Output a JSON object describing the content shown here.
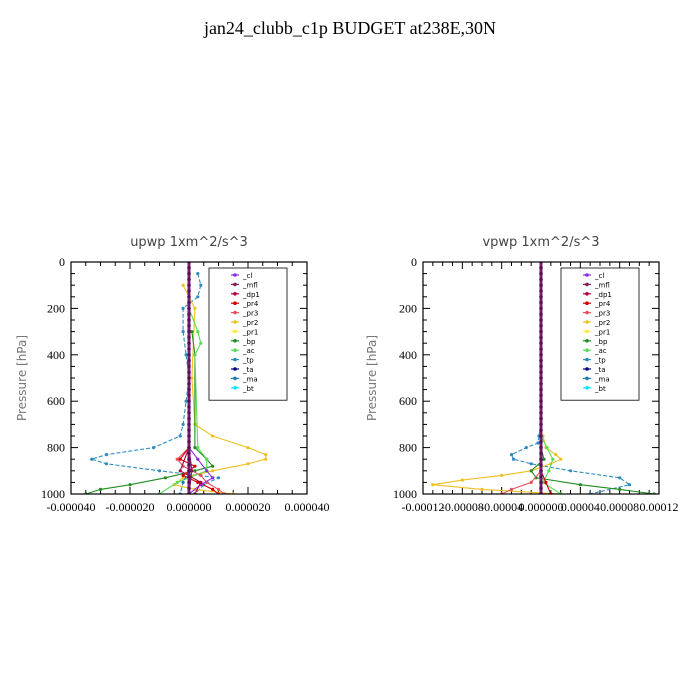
{
  "page": {
    "title": "jan24_clubb_c1p  BUDGET at238E,30N"
  },
  "legend_entries": [
    "_cl",
    "_mfl",
    "_dp1",
    "_pr4",
    "_pr3",
    "_pr2",
    "_pr1",
    "_bp",
    "_ac",
    "_tp",
    "_ta",
    "_ma",
    "_bt"
  ],
  "colors": {
    "_cl": "#8a2be2",
    "_mfl": "#8b1a5a",
    "_dp1": "#b0003a",
    "_pr4": "#d00000",
    "_pr3": "#e8505a",
    "_pr2": "#f0c020",
    "_pr1": "#ffea40",
    "_bp": "#228b22",
    "_ac": "#55dd55",
    "_tp": "#2e8bc0",
    "_ta": "#00008b",
    "_ma": "#1f77b4",
    "_bt": "#00e5ff"
  },
  "chart_data": [
    {
      "type": "line",
      "title": "upwp   1xm^2/s^3",
      "ylabel": "Pressure [hPa]",
      "ylim": [
        1000,
        0
      ],
      "xlim": [
        -4e-05,
        4e-05
      ],
      "xticks": [
        "-0.000040",
        "-0.000020",
        "0.000000",
        "0.000020",
        "0.000040"
      ],
      "yticks": [
        "0",
        "200",
        "400",
        "600",
        "800",
        "1000"
      ],
      "series": [
        {
          "name": "_tp",
          "y": [
            50,
            100,
            150,
            200,
            300,
            400,
            500,
            600,
            700,
            750,
            800,
            830,
            850,
            870,
            900,
            930,
            960,
            1000
          ],
          "x": [
            3e-06,
            4e-06,
            3e-06,
            -2e-06,
            -2e-06,
            -1e-06,
            0,
            -1e-06,
            -2e-06,
            -3e-06,
            -1.2e-05,
            -2.8e-05,
            -3.3e-05,
            -2.8e-05,
            -1e-05,
            1e-05,
            5e-06,
            2e-06
          ]
        },
        {
          "name": "_pr2",
          "y": [
            100,
            200,
            500,
            700,
            750,
            800,
            830,
            850,
            870,
            900,
            930,
            960,
            980,
            1000
          ],
          "x": [
            -2e-06,
            2e-06,
            1e-06,
            2e-06,
            8e-06,
            2e-05,
            2.6e-05,
            2.6e-05,
            2e-05,
            8e-06,
            -2e-06,
            -5e-06,
            2e-06,
            1.5e-05
          ]
        },
        {
          "name": "_bp",
          "y": [
            300,
            400,
            800,
            850,
            880,
            900,
            930,
            960,
            980,
            1000
          ],
          "x": [
            1e-06,
            2e-06,
            2e-06,
            6e-06,
            8e-06,
            2e-06,
            -8e-06,
            -2e-05,
            -3e-05,
            -3.5e-05
          ]
        },
        {
          "name": "_ac",
          "y": [
            200,
            300,
            350,
            400,
            800,
            850,
            900,
            950,
            1000
          ],
          "x": [
            0,
            3e-06,
            4e-06,
            2e-06,
            3e-06,
            6e-06,
            6e-06,
            -4e-06,
            -1e-05
          ]
        },
        {
          "name": "_pr3",
          "y": [
            800,
            850,
            880,
            920,
            950,
            980,
            1000
          ],
          "x": [
            0,
            -4e-06,
            -2e-06,
            4e-06,
            6e-06,
            1e-05,
            1.2e-05
          ]
        },
        {
          "name": "_pr4",
          "y": [
            800,
            850,
            880,
            920,
            950,
            980,
            1000
          ],
          "x": [
            0,
            -3e-06,
            2e-06,
            -2e-06,
            3e-06,
            8e-06,
            1e-05
          ]
        },
        {
          "name": "_cl",
          "y": [
            800,
            850,
            900,
            930,
            960,
            1000
          ],
          "x": [
            0,
            3e-06,
            6e-06,
            8e-06,
            4e-06,
            0
          ]
        },
        {
          "name": "_mfl",
          "y": [
            0,
            500,
            800,
            900,
            1000
          ],
          "x": [
            0,
            0,
            0,
            1e-06,
            0
          ]
        },
        {
          "name": "_dp1",
          "y": [
            800,
            900,
            950,
            1000
          ],
          "x": [
            0,
            -3e-06,
            4e-06,
            2e-06
          ]
        },
        {
          "name": "_ma",
          "y": [
            900,
            950,
            1000
          ],
          "x": [
            0,
            -2e-06,
            -3e-06
          ]
        }
      ]
    },
    {
      "type": "line",
      "title": "vpwp   1xm^2/s^3",
      "ylabel": "Pressure [hPa]",
      "ylim": [
        1000,
        0
      ],
      "xlim": [
        -0.00012,
        0.00012
      ],
      "xticks": [
        "-0.00012",
        "-0.00008",
        "-0.00004",
        "0.000000",
        "0.00004",
        "0.00008",
        "0.00012"
      ],
      "yticks": [
        "0",
        "200",
        "400",
        "600",
        "800",
        "1000"
      ],
      "series": [
        {
          "name": "_tp",
          "y": [
            700,
            750,
            780,
            800,
            830,
            850,
            870,
            900,
            930,
            960,
            1000
          ],
          "x": [
            0,
            -2e-06,
            -3e-06,
            -1.5e-05,
            -3e-05,
            -2.8e-05,
            -1e-05,
            3e-05,
            8e-05,
            9e-05,
            5e-05
          ]
        },
        {
          "name": "_pr2",
          "y": [
            750,
            800,
            830,
            850,
            870,
            900,
            920,
            940,
            960,
            980,
            1000
          ],
          "x": [
            2e-06,
            5e-06,
            1.5e-05,
            2e-05,
            1e-05,
            -1e-05,
            -4e-05,
            -8e-05,
            -0.00011,
            -6e-05,
            2e-05
          ]
        },
        {
          "name": "_bp",
          "y": [
            800,
            850,
            900,
            930,
            960,
            980,
            1000
          ],
          "x": [
            0,
            3e-06,
            -1e-05,
            -5e-06,
            4e-05,
            8e-05,
            0.000115
          ]
        },
        {
          "name": "_ac",
          "y": [
            750,
            800,
            850,
            900,
            950,
            1000
          ],
          "x": [
            0,
            6e-06,
            1.2e-05,
            8e-06,
            2e-06,
            2e-05
          ]
        },
        {
          "name": "_pr3",
          "y": [
            900,
            950,
            980,
            1000
          ],
          "x": [
            0,
            -1e-05,
            -3e-05,
            -4e-05
          ]
        },
        {
          "name": "_pr4",
          "y": [
            900,
            950,
            1000
          ],
          "x": [
            0,
            5e-06,
            1e-05
          ]
        },
        {
          "name": "_mfl",
          "y": [
            0,
            500,
            900,
            1000
          ],
          "x": [
            0,
            0,
            0,
            0
          ]
        },
        {
          "name": "_dp1",
          "y": [
            0,
            500,
            1000
          ],
          "x": [
            0,
            0,
            0
          ]
        }
      ]
    }
  ]
}
